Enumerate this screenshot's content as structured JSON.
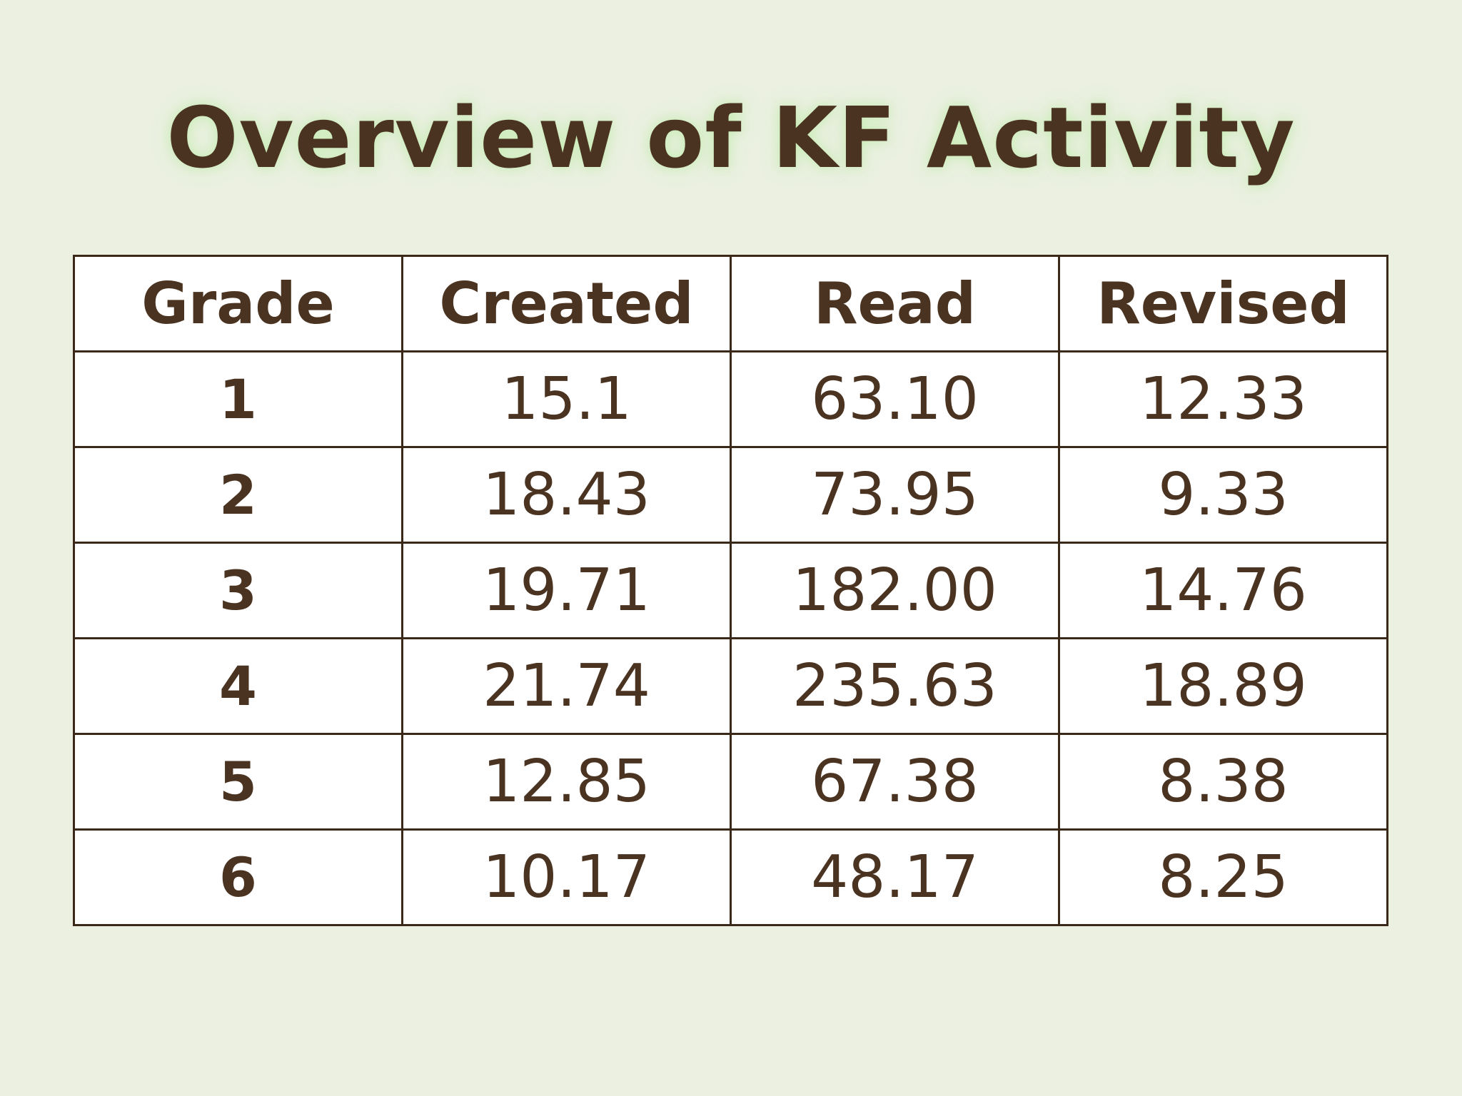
{
  "slide": {
    "title": "Overview of KF Activity"
  },
  "table": {
    "headers": [
      "Grade",
      "Created",
      "Read",
      "Revised"
    ],
    "rows": [
      [
        "1",
        "15.1",
        "63.10",
        "12.33"
      ],
      [
        "2",
        "18.43",
        "73.95",
        "9.33"
      ],
      [
        "3",
        "19.71",
        "182.00",
        "14.76"
      ],
      [
        "4",
        "21.74",
        "235.63",
        "18.89"
      ],
      [
        "5",
        "12.85",
        "67.38",
        "8.38"
      ],
      [
        "6",
        "10.17",
        "48.17",
        "8.25"
      ]
    ]
  },
  "colors": {
    "background": "#ebf0e1",
    "text": "#4a3320",
    "border": "#3a2818",
    "title_glow": "#c8ebb4"
  }
}
